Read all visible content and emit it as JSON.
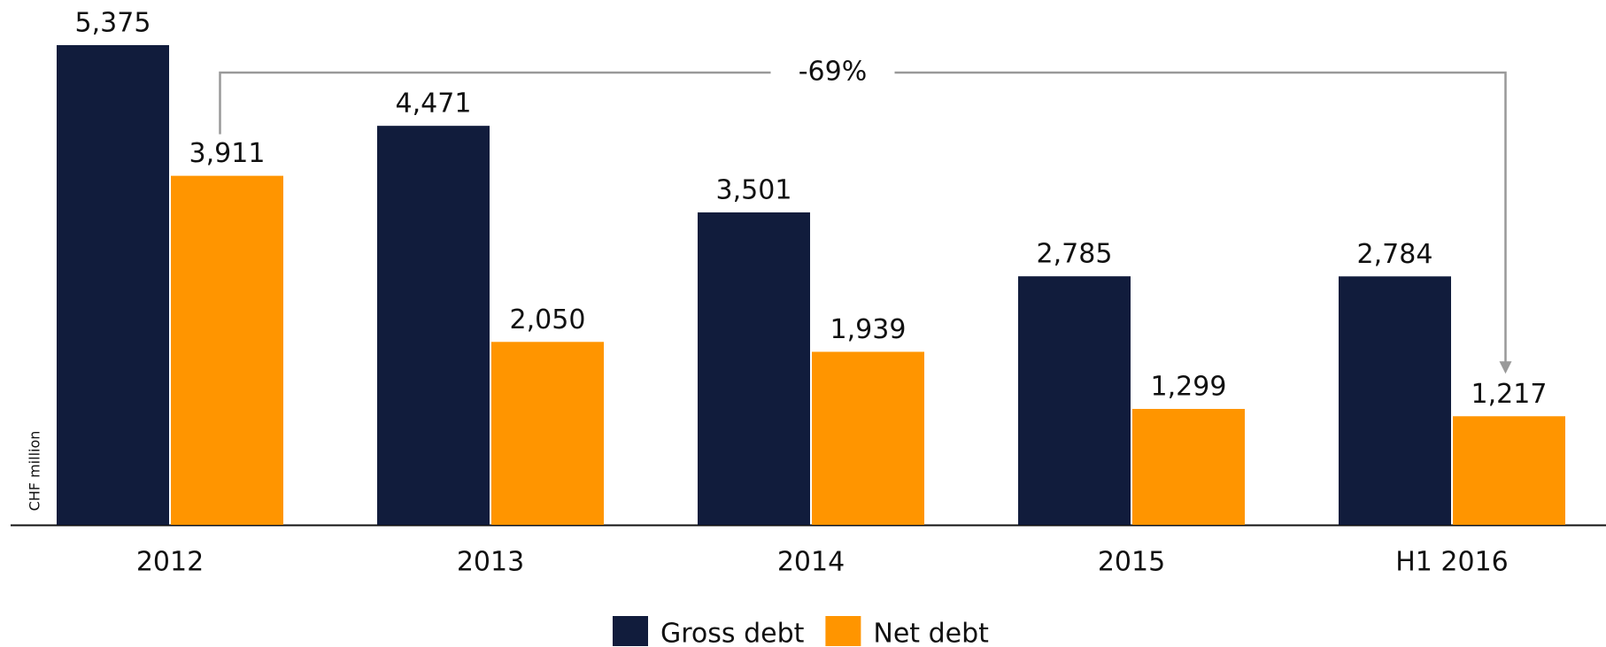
{
  "chart_data": {
    "type": "bar",
    "y_label": "CHF million",
    "categories": [
      "2012",
      "2013",
      "2014",
      "2015",
      "H1 2016"
    ],
    "series": [
      {
        "name": "Gross debt",
        "color": "#111c3c",
        "values": [
          5375,
          4471,
          3501,
          2785,
          2784
        ],
        "value_labels": [
          "5,375",
          "4,471",
          "3,501",
          "2,785",
          "2,784"
        ]
      },
      {
        "name": "Net debt",
        "color": "#ff9500",
        "values": [
          3911,
          2050,
          1939,
          1299,
          1217
        ],
        "value_labels": [
          "3,911",
          "2,050",
          "1,939",
          "1,299",
          "1,217"
        ]
      }
    ],
    "annotation": {
      "text": "-69%"
    },
    "legend": "bottom"
  }
}
